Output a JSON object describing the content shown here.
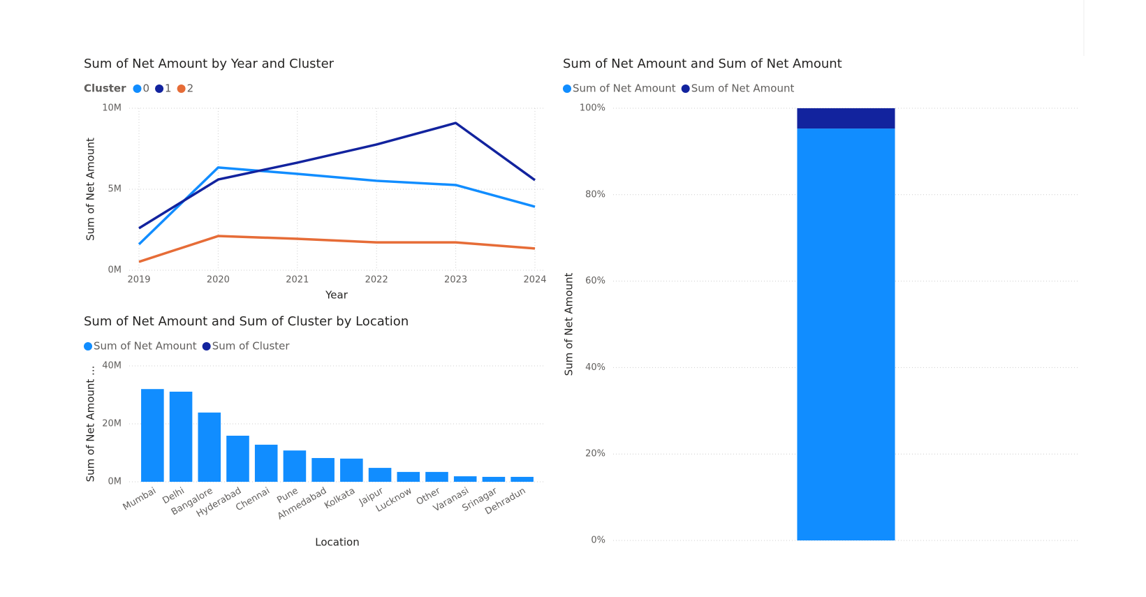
{
  "chart_data": [
    {
      "type": "line",
      "title": "Sum of Net Amount by Year and Cluster",
      "legend_title": "Cluster",
      "x": [
        2019,
        2020,
        2021,
        2022,
        2023,
        2024
      ],
      "xlim": [
        2019,
        2024
      ],
      "xticks": [
        2019,
        2020,
        2021,
        2022,
        2023,
        2024
      ],
      "series": [
        {
          "name": "0",
          "color": "#118DFF",
          "values": [
            1600000,
            6340000,
            5950000,
            5520000,
            5260000,
            3920000
          ]
        },
        {
          "name": "1",
          "color": "#12239E",
          "values": [
            2590000,
            5600000,
            6640000,
            7760000,
            9090000,
            5560000
          ]
        },
        {
          "name": "2",
          "color": "#E66C37",
          "values": [
            520000,
            2110000,
            1940000,
            1720000,
            1720000,
            1340000
          ]
        }
      ],
      "ylim": [
        0,
        10000000
      ],
      "yticks": [
        {
          "value": 0,
          "label": "0M"
        },
        {
          "value": 5000000,
          "label": "5M"
        },
        {
          "value": 10000000,
          "label": "10M"
        }
      ],
      "x_label": "Year",
      "y_label": "Sum of Net Amount",
      "grid": true
    },
    {
      "type": "bar",
      "stacked": true,
      "title": "Sum of Net Amount and Sum of Cluster by Location",
      "categories": [
        "Mumbai",
        "Delhi",
        "Bangalore",
        "Hyderabad",
        "Chennai",
        "Pune",
        "Ahmedabad",
        "Kolkata",
        "Jaipur",
        "Lucknow",
        "Other",
        "Varanasi",
        "Srinagar",
        "Dehradun"
      ],
      "series": [
        {
          "name": "Sum of Net Amount",
          "color": "#118DFF",
          "values": [
            32000000,
            31100000,
            23900000,
            15900000,
            12800000,
            10800000,
            8200000,
            8000000,
            4800000,
            3400000,
            3400000,
            1900000,
            1700000,
            1700000
          ]
        },
        {
          "name": "Sum of Cluster",
          "color": "#12239E",
          "values": [
            0,
            0,
            0,
            0,
            0,
            0,
            0,
            0,
            0,
            0,
            0,
            0,
            0,
            0
          ]
        }
      ],
      "ylim": [
        0,
        40000000
      ],
      "yticks": [
        {
          "value": 0,
          "label": "0M"
        },
        {
          "value": 20000000,
          "label": "20M"
        },
        {
          "value": 40000000,
          "label": "40M"
        }
      ],
      "x_label": "Location",
      "y_label": "Sum of Net Amount ...",
      "grid": true
    },
    {
      "type": "bar",
      "stacked": true,
      "title": "Sum of Net Amount and Sum of Net Amount",
      "categories": [
        null
      ],
      "series": [
        {
          "name": "Sum of Net Amount",
          "color": "#118DFF",
          "values": [
            95.3
          ]
        },
        {
          "name": "Sum of Net Amount",
          "color": "#12239E",
          "values": [
            4.7
          ]
        }
      ],
      "ylim": [
        0,
        100
      ],
      "yticks": [
        {
          "value": 0,
          "label": "0%"
        },
        {
          "value": 20,
          "label": "20%"
        },
        {
          "value": 40,
          "label": "40%"
        },
        {
          "value": 60,
          "label": "60%"
        },
        {
          "value": 80,
          "label": "80%"
        },
        {
          "value": 100,
          "label": "100%"
        }
      ],
      "y_label": "Sum of Net Amount",
      "grid": true
    }
  ]
}
